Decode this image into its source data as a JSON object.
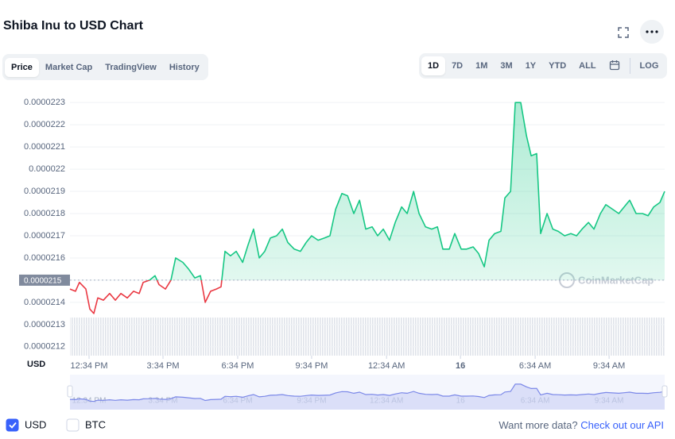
{
  "header": {
    "title": "Shiba Inu to USD Chart"
  },
  "tabs": [
    "Price",
    "Market Cap",
    "TradingView",
    "History"
  ],
  "active_tab": 0,
  "ranges": [
    "1D",
    "7D",
    "1M",
    "3M",
    "1Y",
    "YTD",
    "ALL"
  ],
  "active_range": 0,
  "log_button": "LOG",
  "chart_data": {
    "type": "line",
    "y_unit_label": "USD",
    "watermark": "CoinMarketCap",
    "reference_value": 2.15e-05,
    "x": [
      0,
      0.22,
      0.38,
      0.64,
      0.8,
      0.96,
      1.12,
      1.35,
      1.6,
      1.83,
      2.05,
      2.31,
      2.56,
      2.79,
      2.95,
      3.21,
      3.43,
      3.59,
      3.85,
      4.07,
      4.26,
      4.55,
      4.78,
      5.03,
      5.26,
      5.45,
      5.67,
      5.9,
      6.09,
      6.25,
      6.47,
      6.7,
      6.96,
      7.18,
      7.4,
      7.63,
      7.85,
      8.08,
      8.33,
      8.56,
      8.78,
      9.04,
      9.29,
      9.52,
      9.74,
      10,
      10.26,
      10.48,
      10.71,
      10.96,
      11.19,
      11.44,
      11.67,
      11.92,
      12.18,
      12.4,
      12.63,
      12.88,
      13.11,
      13.37,
      13.59,
      13.85,
      14.07,
      14.33,
      14.58,
      14.81,
      15.03,
      15.29,
      15.51,
      15.77,
      15.99,
      16.25,
      16.47,
      16.7,
      16.89,
      17.12,
      17.37,
      17.53,
      17.76,
      17.95,
      18.17,
      18.4,
      18.59,
      18.81,
      18.97,
      19.23,
      19.46,
      19.68,
      19.94,
      20.19,
      20.42,
      20.64,
      20.9,
      21.12,
      21.38,
      21.6,
      21.86,
      22.12,
      22.34,
      22.56,
      22.82,
      23.08,
      23.3,
      23.53,
      23.78,
      23.97
    ],
    "series": [
      {
        "name": "USD",
        "color": "#16c784",
        "down_color": "#ea3943",
        "values": [
          2.146e-05,
          2.145e-05,
          2.149e-05,
          2.146e-05,
          2.137e-05,
          2.135e-05,
          2.142e-05,
          2.141e-05,
          2.144e-05,
          2.141e-05,
          2.144e-05,
          2.142e-05,
          2.145e-05,
          2.144e-05,
          2.149e-05,
          2.15e-05,
          2.152e-05,
          2.148e-05,
          2.146e-05,
          2.15e-05,
          2.16e-05,
          2.158e-05,
          2.155e-05,
          2.151e-05,
          2.152e-05,
          2.14e-05,
          2.145e-05,
          2.146e-05,
          2.147e-05,
          2.163e-05,
          2.161e-05,
          2.163e-05,
          2.158e-05,
          2.166e-05,
          2.173e-05,
          2.16e-05,
          2.163e-05,
          2.169e-05,
          2.17e-05,
          2.173e-05,
          2.167e-05,
          2.164e-05,
          2.163e-05,
          2.167e-05,
          2.17e-05,
          2.168e-05,
          2.169e-05,
          2.17e-05,
          2.182e-05,
          2.189e-05,
          2.188e-05,
          2.18e-05,
          2.186e-05,
          2.173e-05,
          2.174e-05,
          2.17e-05,
          2.173e-05,
          2.168e-05,
          2.176e-05,
          2.183e-05,
          2.18e-05,
          2.19e-05,
          2.18e-05,
          2.174e-05,
          2.173e-05,
          2.174e-05,
          2.164e-05,
          2.164e-05,
          2.171e-05,
          2.164e-05,
          2.164e-05,
          2.165e-05,
          2.162e-05,
          2.156e-05,
          2.168e-05,
          2.171e-05,
          2.172e-05,
          2.187e-05,
          2.19e-05,
          2.23e-05,
          2.23e-05,
          2.215e-05,
          2.206e-05,
          2.207e-05,
          2.171e-05,
          2.18e-05,
          2.173e-05,
          2.172e-05,
          2.17e-05,
          2.171e-05,
          2.17e-05,
          2.173e-05,
          2.176e-05,
          2.173e-05,
          2.18e-05,
          2.184e-05,
          2.182e-05,
          2.18e-05,
          2.183e-05,
          2.186e-05,
          2.18e-05,
          2.18e-05,
          2.179e-05,
          2.183e-05,
          2.185e-05,
          2.19e-05
        ]
      }
    ],
    "xlim": [
      0,
      23.97
    ],
    "xticks": [
      {
        "value": 0.77,
        "label": "12:34 PM"
      },
      {
        "value": 3.75,
        "label": "3:34 PM"
      },
      {
        "value": 6.76,
        "label": "6:34 PM"
      },
      {
        "value": 9.74,
        "label": "9:34 PM"
      },
      {
        "value": 12.76,
        "label": "12:34 AM"
      },
      {
        "value": 15.74,
        "label": "16"
      },
      {
        "value": 18.75,
        "label": "6:34 AM"
      },
      {
        "value": 21.73,
        "label": "9:34 AM"
      }
    ],
    "ylim": [
      2.116e-05,
      2.234e-05
    ],
    "yticks": [
      2.12e-05,
      2.13e-05,
      2.14e-05,
      2.15e-05,
      2.16e-05,
      2.17e-05,
      2.18e-05,
      2.19e-05,
      2.2e-05,
      2.21e-05,
      2.22e-05,
      2.23e-05
    ],
    "grid": true
  },
  "legend": [
    {
      "label": "USD",
      "checked": true
    },
    {
      "label": "BTC",
      "checked": false
    }
  ],
  "footer": {
    "text": "Want more data?",
    "link": "Check out our API"
  }
}
